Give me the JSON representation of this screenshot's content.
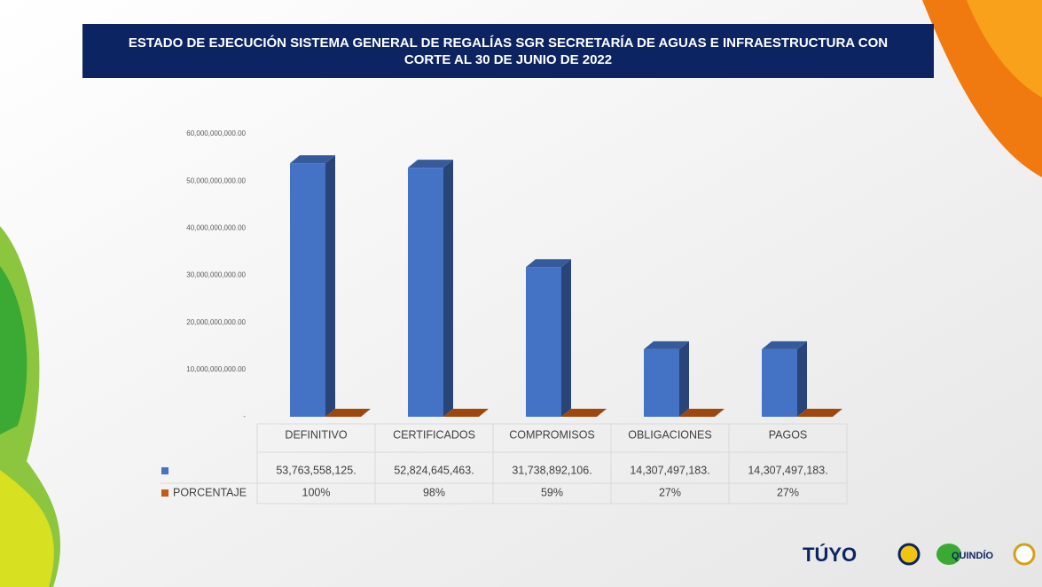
{
  "title": "ESTADO DE EJECUCIÓN SISTEMA GENERAL DE REGALÍAS SGR SECRETARÍA DE AGUAS E INFRAESTRUCTURA CON CORTE AL 30 DE JUNIO DE 2022",
  "logos": [
    "TÚYO",
    "QUINDÍO"
  ],
  "chart_data": {
    "type": "bar3d",
    "categories": [
      "DEFINITIVO",
      "CERTIFICADOS",
      "COMPROMISOS",
      "OBLIGACIONES",
      "PAGOS"
    ],
    "series": [
      {
        "color": "#4472c4",
        "values": [
          53763558125,
          52824645463,
          31738892106,
          14307497183,
          14307497183
        ],
        "value_labels": [
          "53,763,558,125.",
          "52,824,645,463.",
          "31,738,892,106.",
          "14,307,497,183.",
          "14,307,497,183."
        ]
      },
      {
        "name": "PORCENTAJE",
        "color": "#c55a11",
        "values": [
          100,
          98,
          59,
          27,
          27
        ],
        "value_labels": [
          "100%",
          "98%",
          "59%",
          "27%",
          "27%"
        ]
      }
    ],
    "ylim": [
      0,
      60000000000
    ],
    "yticks": [
      {
        "value": 0,
        "label": "-"
      },
      {
        "value": 10000000000,
        "label": "10,000,000,000.00"
      },
      {
        "value": 20000000000,
        "label": "20,000,000,000.00"
      },
      {
        "value": 30000000000,
        "label": "30,000,000,000.00"
      },
      {
        "value": 40000000000,
        "label": "40,000,000,000.00"
      },
      {
        "value": 50000000000,
        "label": "50,000,000,000.00"
      },
      {
        "value": 60000000000,
        "label": "60,000,000,000.00"
      }
    ],
    "data_table": true
  }
}
